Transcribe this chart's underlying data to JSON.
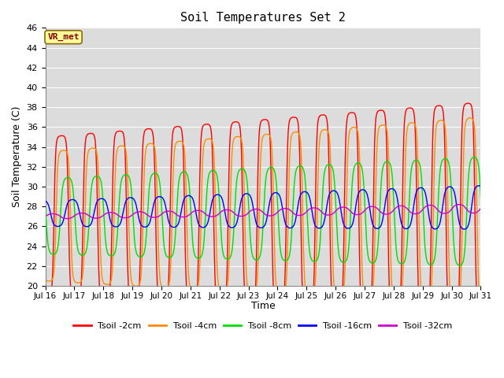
{
  "title": "Soil Temperatures Set 2",
  "xlabel": "Time",
  "ylabel": "Soil Temperature (C)",
  "ylim": [
    20,
    46
  ],
  "yticks": [
    20,
    22,
    24,
    26,
    28,
    30,
    32,
    34,
    36,
    38,
    40,
    42,
    44,
    46
  ],
  "colors": {
    "Tsoil -2cm": "#ff0000",
    "Tsoil -4cm": "#ff8c00",
    "Tsoil -8cm": "#00dd00",
    "Tsoil -16cm": "#0000ff",
    "Tsoil -32cm": "#cc00cc"
  },
  "annotation_text": "VR_met",
  "annotation_color": "#8b0000",
  "annotation_bg": "#ffff99",
  "plot_bg": "#dcdcdc",
  "grid_color": "#ffffff",
  "n_days": 15,
  "start_day": 16
}
